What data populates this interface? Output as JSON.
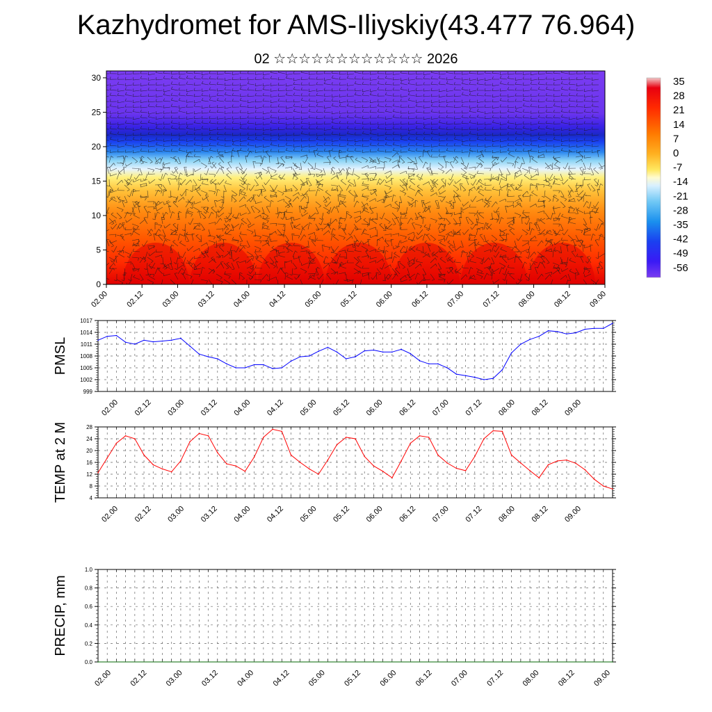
{
  "title": "Kazhydromet for AMS-Iliyskiy(43.477 76.964)",
  "subtitle": "02 ☆☆☆☆☆☆☆☆☆☆☆☆ 2026",
  "colors": {
    "pmsl_line": "#0000ff",
    "temp_line": "#ff0000",
    "precip_line": "#006400",
    "gridline": "#555555"
  },
  "colorbar": {
    "labels": [
      "35",
      "28",
      "21",
      "14",
      "7",
      "0",
      "-7",
      "-14",
      "-21",
      "-28",
      "-35",
      "-42",
      "-49",
      "-56"
    ],
    "stops": [
      "#f4c4c4",
      "#e8000a",
      "#ff3a00",
      "#ff7400",
      "#ffa700",
      "#ffcf2e",
      "#fff078",
      "#d8f0ff",
      "#7fd0f5",
      "#1aa5ee",
      "#1a6ef5",
      "#1a3cf0",
      "#3a1af5",
      "#7a3cf0"
    ]
  },
  "chart_data": [
    {
      "name": "cross-section",
      "type": "heatmap",
      "description_of_content": "vertical cross-section of temperature with wind barbs",
      "y_ticks": [
        0,
        5,
        10,
        15,
        20,
        25,
        30
      ],
      "ylim": [
        0,
        31
      ],
      "x_ticks": [
        "02.00",
        "02.12",
        "03.00",
        "03.12",
        "04.00",
        "04.12",
        "05.00",
        "05.12",
        "06.00",
        "06.12",
        "07.00",
        "07.12",
        "08.00",
        "08.12",
        "09.00"
      ]
    },
    {
      "name": "pmsl",
      "type": "line",
      "ylabel": "PMSL",
      "ylim": [
        999,
        1017
      ],
      "y_ticks": [
        999,
        1002,
        1005,
        1008,
        1011,
        1014,
        1017
      ],
      "x_ticks": [
        "02.00",
        "02.12",
        "03.00",
        "03.12",
        "04.00",
        "04.12",
        "05.00",
        "05.12",
        "06.00",
        "06.12",
        "07.00",
        "07.12",
        "08.00",
        "08.12",
        "09.00"
      ],
      "x": [
        0,
        3,
        6,
        9,
        12,
        15,
        18,
        21,
        24,
        27,
        30,
        33,
        36,
        39,
        42,
        45,
        48,
        51,
        54,
        57,
        60,
        63,
        66,
        69,
        72,
        75,
        78,
        81,
        84,
        87,
        90,
        93,
        96,
        99,
        102,
        105,
        108,
        111,
        114,
        117,
        120,
        123,
        126,
        129,
        132,
        135,
        138,
        141,
        144,
        147,
        150,
        153,
        156,
        159,
        162,
        165,
        168
      ],
      "values": [
        1012,
        1013,
        1013.2,
        1011.5,
        1011,
        1012,
        1011.6,
        1011.8,
        1012,
        1012.5,
        1010.5,
        1008.5,
        1007.8,
        1007.3,
        1006,
        1005,
        1005,
        1005.8,
        1005.8,
        1004.8,
        1005,
        1006.7,
        1007.8,
        1008,
        1009.2,
        1010.2,
        1009,
        1007.3,
        1007.8,
        1009.3,
        1009.5,
        1009,
        1009,
        1009.7,
        1008.6,
        1006.8,
        1006,
        1006,
        1005,
        1003.4,
        1003,
        1002.6,
        1002,
        1002.3,
        1004.5,
        1008.8,
        1011,
        1012.2,
        1013,
        1014.4,
        1014.2,
        1013.6,
        1013.9,
        1014.8,
        1015,
        1015,
        1016.3
      ]
    },
    {
      "name": "temp2m",
      "type": "line",
      "ylabel": "TEMP at 2 M",
      "ylim": [
        4,
        28
      ],
      "y_ticks": [
        4,
        8,
        12,
        16,
        20,
        24,
        28
      ],
      "x_ticks": [
        "02.00",
        "02.12",
        "03.00",
        "03.12",
        "04.00",
        "04.12",
        "05.00",
        "05.12",
        "06.00",
        "06.12",
        "07.00",
        "07.12",
        "08.00",
        "08.12",
        "09.00"
      ],
      "x": [
        0,
        3,
        6,
        9,
        12,
        15,
        18,
        21,
        24,
        27,
        30,
        33,
        36,
        39,
        42,
        45,
        48,
        51,
        54,
        57,
        60,
        63,
        66,
        69,
        72,
        75,
        78,
        81,
        84,
        87,
        90,
        93,
        96,
        99,
        102,
        105,
        108,
        111,
        114,
        117,
        120,
        123,
        126,
        129,
        132,
        135,
        138,
        141,
        144,
        147,
        150,
        153,
        156,
        159,
        162,
        165,
        168
      ],
      "values": [
        12.5,
        17.5,
        22.5,
        25,
        24,
        18.5,
        15.2,
        13.8,
        12.8,
        16.5,
        23,
        25.8,
        25,
        19.3,
        15.5,
        14.8,
        13,
        17.8,
        24.5,
        27.2,
        26.5,
        18.5,
        16,
        13.8,
        12,
        16.8,
        22,
        24.5,
        24,
        18,
        14.8,
        13,
        10.8,
        16.5,
        22.5,
        25,
        24.5,
        18.5,
        15.8,
        14,
        13.2,
        18,
        24,
        26.7,
        26.5,
        18.5,
        15.8,
        13.2,
        10.8,
        15.2,
        16.5,
        16.8,
        15.7,
        13.5,
        10.3,
        8,
        7
      ]
    },
    {
      "name": "precip",
      "type": "line",
      "ylabel": "PRECIP, mm",
      "ylim": [
        0,
        1
      ],
      "y_ticks": [
        "0.0",
        "0.2",
        "0.4",
        "0.6",
        "0.8",
        "1.0"
      ],
      "x_ticks": [
        "02.00",
        "02.12",
        "03.00",
        "03.12",
        "04.00",
        "04.12",
        "05.00",
        "05.12",
        "06.00",
        "06.12",
        "07.00",
        "07.12",
        "08.00",
        "08.12",
        "09.00"
      ],
      "x": [
        0,
        168
      ],
      "values": [
        0,
        0
      ]
    }
  ]
}
